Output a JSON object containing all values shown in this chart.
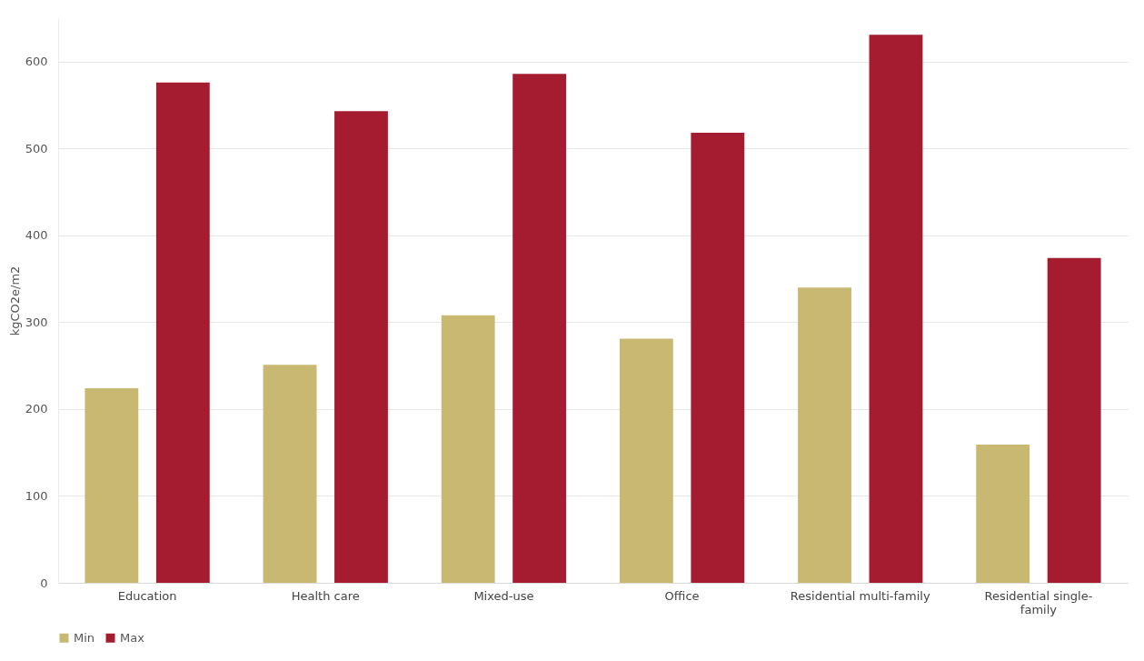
{
  "chart_data": {
    "type": "bar",
    "ylabel": "kgCO2e/m2",
    "categories": [
      "Education",
      "Health care",
      "Mixed-use",
      "Office",
      "Residential multi-family",
      "Residential single-family"
    ],
    "series": [
      {
        "name": "Min",
        "color": "#c9b872",
        "values": [
          224,
          251,
          308,
          281,
          340,
          159
        ]
      },
      {
        "name": "Max",
        "color": "#a51c30",
        "values": [
          576,
          543,
          586,
          518,
          631,
          374
        ]
      }
    ],
    "ylim": [
      0,
      650
    ],
    "yticks": [
      0,
      100,
      200,
      300,
      400,
      500,
      600
    ],
    "grid": "y",
    "legend": "bottom"
  }
}
